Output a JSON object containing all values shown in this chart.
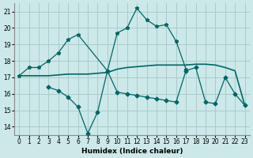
{
  "title": "",
  "xlabel": "Humidex (Indice chaleur)",
  "bg_color": "#cce8e8",
  "grid_color": "#aacccc",
  "line_color": "#006666",
  "line1_x": [
    0,
    1,
    2,
    3,
    4,
    5,
    6,
    9,
    10,
    11,
    12,
    13,
    14,
    15,
    16,
    17
  ],
  "line1_y": [
    17.1,
    17.6,
    17.6,
    18.0,
    18.5,
    19.3,
    19.6,
    17.4,
    19.7,
    20.0,
    21.2,
    20.5,
    20.1,
    20.2,
    19.2,
    17.5
  ],
  "line2_x": [
    0,
    1,
    2,
    3,
    4,
    5,
    6,
    7,
    8,
    9,
    10,
    11,
    12,
    13,
    14,
    15,
    16,
    17,
    18,
    19,
    20,
    21,
    22,
    23
  ],
  "line2_y": [
    17.1,
    17.1,
    17.1,
    17.1,
    17.15,
    17.2,
    17.2,
    17.2,
    17.25,
    17.3,
    17.5,
    17.6,
    17.65,
    17.7,
    17.75,
    17.75,
    17.75,
    17.75,
    17.8,
    17.8,
    17.75,
    17.6,
    17.4,
    15.3
  ],
  "line3_x": [
    3,
    4,
    5,
    6,
    7,
    8,
    9,
    10,
    11,
    12,
    13,
    14,
    15,
    16,
    17,
    18,
    19,
    20,
    21,
    22,
    23
  ],
  "line3_y": [
    16.4,
    16.2,
    15.8,
    15.2,
    13.6,
    14.9,
    17.4,
    16.1,
    16.0,
    15.9,
    15.8,
    15.7,
    15.6,
    15.5,
    17.4,
    17.6,
    15.5,
    15.4,
    17.0,
    16.0,
    15.3
  ],
  "ylim": [
    13.5,
    21.5
  ],
  "yticks": [
    14,
    15,
    16,
    17,
    18,
    19,
    20,
    21
  ],
  "xlim": [
    -0.5,
    23.5
  ],
  "xticks": [
    0,
    1,
    2,
    3,
    4,
    5,
    6,
    7,
    8,
    9,
    10,
    11,
    12,
    13,
    14,
    15,
    16,
    17,
    18,
    19,
    20,
    21,
    22,
    23
  ],
  "label_fontsize": 6.5,
  "tick_fontsize": 5.5,
  "marker1": "*",
  "marker1_size": 3.5,
  "marker3": "D",
  "marker3_size": 2.5,
  "linewidth": 0.9
}
